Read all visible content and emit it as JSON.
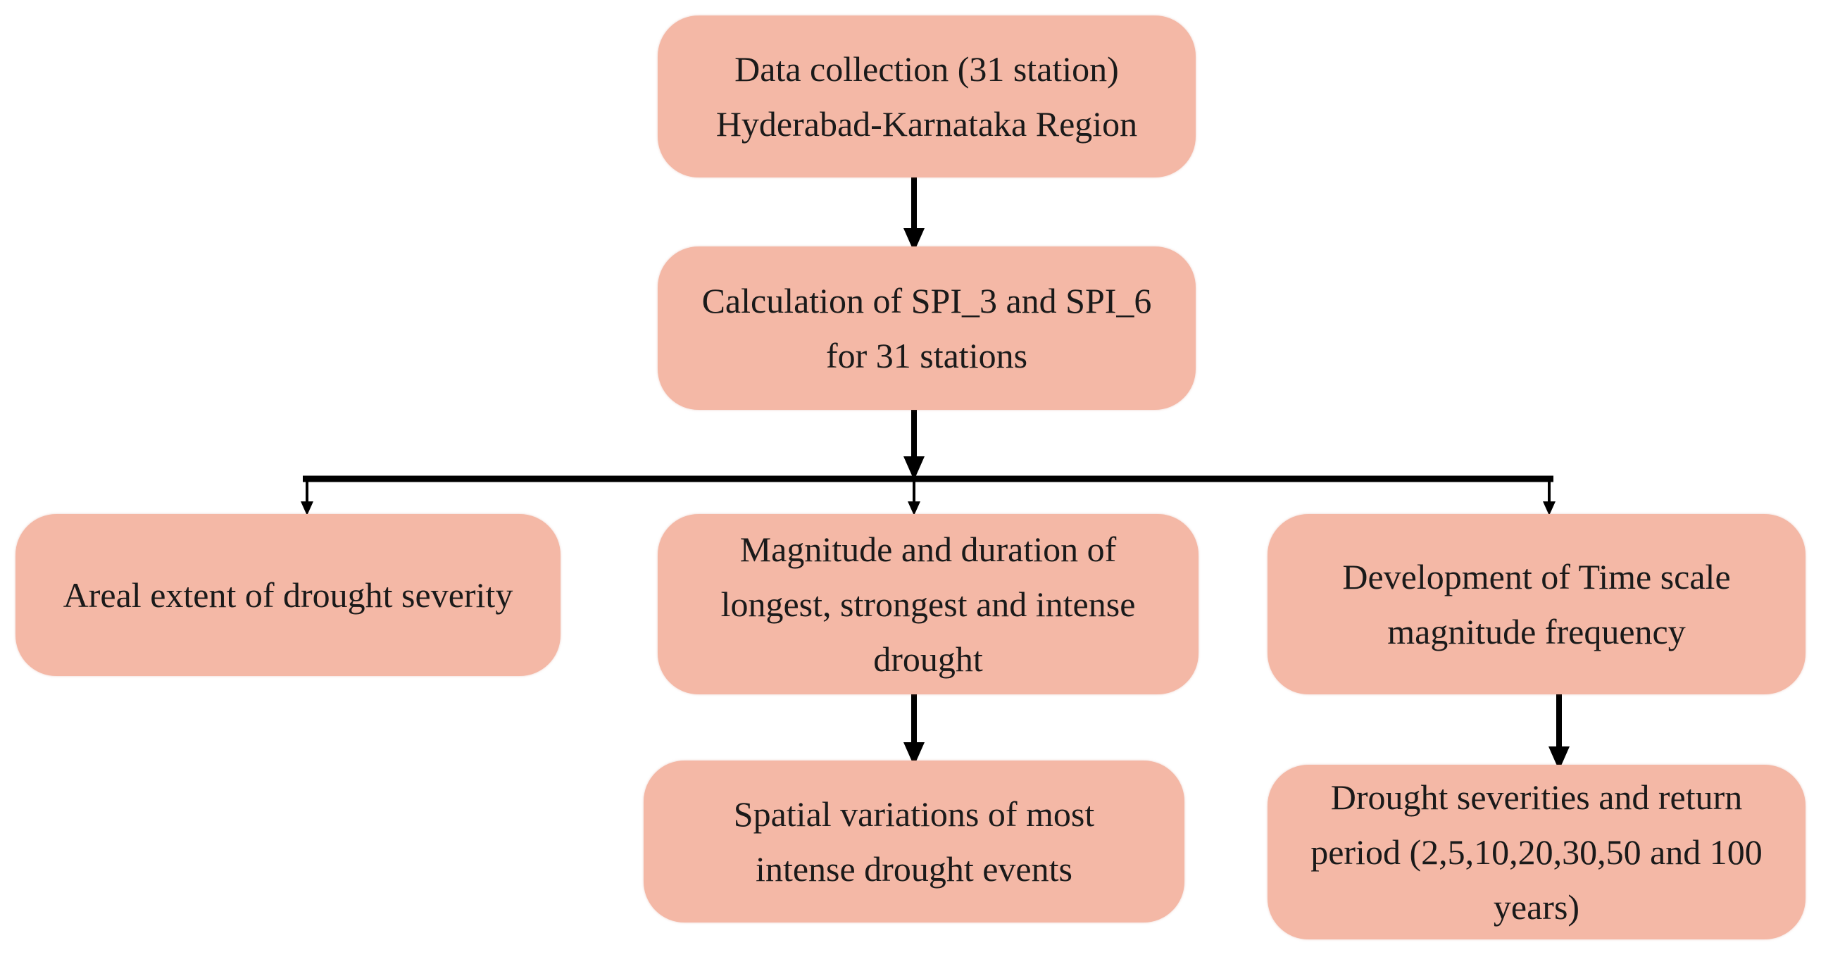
{
  "nodes": {
    "data_collection": "Data collection (31 station)\nHyderabad-Karnataka Region",
    "spi_calculation": "Calculation of SPI_3 and SPI_6\nfor 31 stations",
    "areal_extent": "Areal extent of drought severity",
    "magnitude_duration": "Magnitude and duration of\nlongest, strongest and intense\ndrought",
    "time_scale": "Development of Time scale\nmagnitude frequency",
    "spatial_variations": "Spatial variations of most\nintense drought events",
    "severities_return": "Drought severities and return\nperiod (2,5,10,20,30,50 and 100\nyears)"
  },
  "colors": {
    "node_fill": "#f4b8a6",
    "connector": "#000000"
  }
}
